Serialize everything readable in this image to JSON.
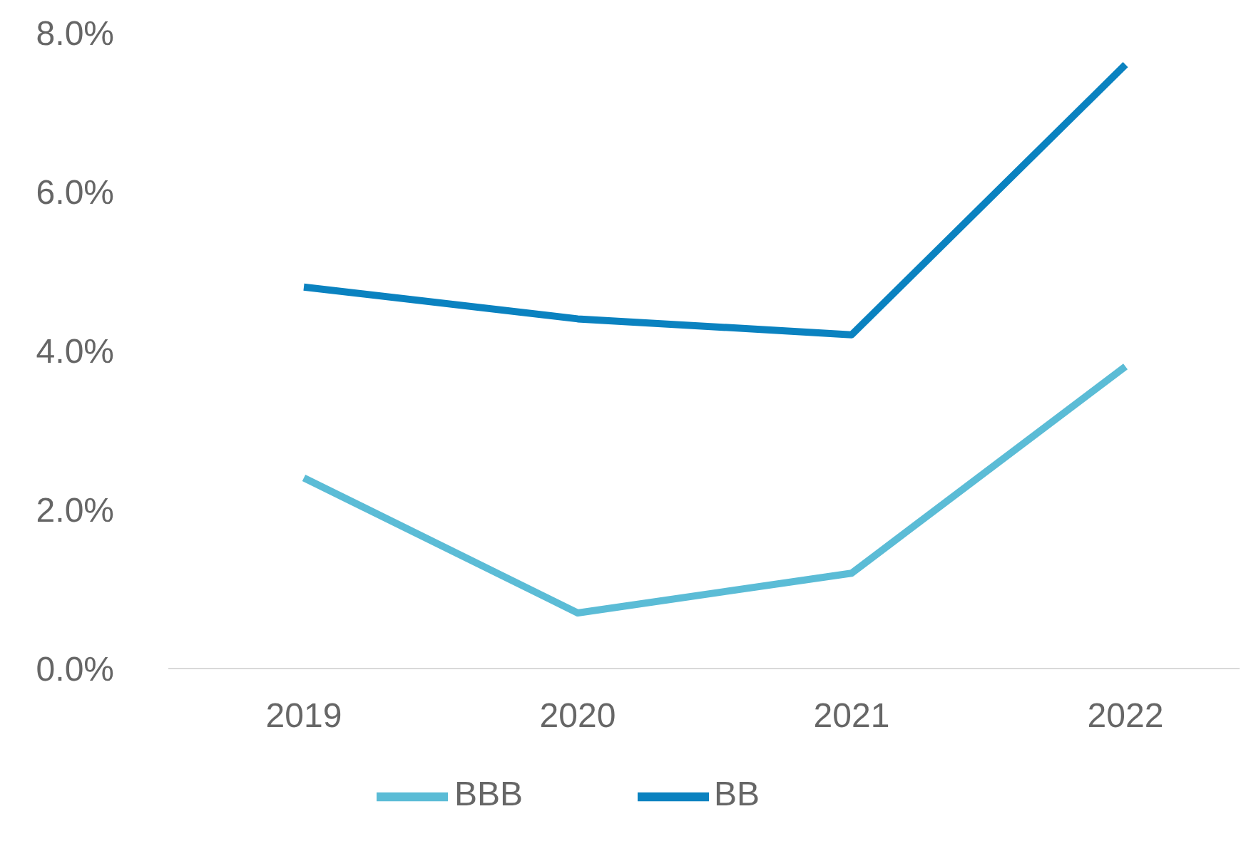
{
  "chart_data": {
    "type": "line",
    "categories": [
      "2019",
      "2020",
      "2021",
      "2022"
    ],
    "series": [
      {
        "name": "BBB",
        "color": "#5bbcd6",
        "values": [
          2.4,
          0.7,
          1.2,
          3.8
        ]
      },
      {
        "name": "BB",
        "color": "#0a82c0",
        "values": [
          4.8,
          4.4,
          4.2,
          7.6
        ]
      }
    ],
    "ylim": [
      0,
      8
    ],
    "yticks": [
      {
        "value": 0,
        "label": "0.0%"
      },
      {
        "value": 2,
        "label": "2.0%"
      },
      {
        "value": 4,
        "label": "4.0%"
      },
      {
        "value": 6,
        "label": "6.0%"
      },
      {
        "value": 8,
        "label": "8.0%"
      }
    ],
    "grid": false,
    "legend": "bottom",
    "marker": "none",
    "line_style": "solid"
  }
}
